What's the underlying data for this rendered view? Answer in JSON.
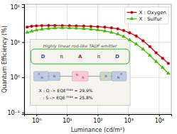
{
  "chart_data": {
    "type": "line",
    "log": true,
    "xlabel": "Luminance (cd/m²)",
    "ylabel": "Quantum Efficiency (%)",
    "x": [
      0.5,
      0.7,
      1.0,
      1.5,
      2.5,
      4.0,
      7.0,
      12,
      20,
      35,
      60,
      100,
      170,
      280,
      450,
      700,
      1100,
      1800,
      3000,
      5000,
      8000,
      13000,
      20000
    ],
    "series": [
      {
        "name": "X : Oxygen",
        "color": "#cc0000",
        "marker": "circle",
        "values": [
          27.0,
          28.5,
          29.2,
          29.7,
          29.9,
          29.8,
          29.6,
          29.4,
          29.1,
          28.7,
          28.2,
          27.6,
          26.8,
          25.6,
          24.0,
          21.5,
          18.5,
          15.0,
          11.0,
          7.5,
          5.0,
          3.5,
          2.5
        ]
      },
      {
        "name": "X : Sulfur",
        "color": "#44bb00",
        "marker": "triangle",
        "values": [
          19.0,
          20.5,
          22.0,
          23.5,
          24.5,
          25.4,
          25.8,
          25.5,
          25.0,
          24.3,
          23.4,
          22.3,
          20.8,
          19.0,
          17.0,
          14.5,
          11.5,
          8.8,
          6.3,
          4.2,
          2.8,
          1.9,
          1.3
        ]
      }
    ],
    "xlim": [
      0.4,
      25000
    ],
    "ylim": [
      0.09,
      120
    ],
    "xticks": [
      {
        "value": 1,
        "label": "10⁰"
      },
      {
        "value": 10,
        "label": "10¹"
      },
      {
        "value": 100,
        "label": "10²"
      },
      {
        "value": 1000,
        "label": "10³"
      },
      {
        "value": 10000,
        "label": "10⁴"
      }
    ],
    "yticks": [
      {
        "value": 0.1,
        "label": "10⁻¹"
      },
      {
        "value": 1,
        "label": "10⁰"
      },
      {
        "value": 10,
        "label": "10¹"
      },
      {
        "value": 100,
        "label": "10²"
      }
    ],
    "grid": true,
    "legend": "upper right",
    "annotations": [
      "Highly linear rod-like TADF emitter",
      [
        "D",
        "π",
        "A",
        "π",
        "D"
      ],
      [
        [
          "X",
          "N"
        ],
        [
          "N"
        ],
        [
          "N",
          "N"
        ],
        [
          "N"
        ],
        [
          "X",
          "N"
        ]
      ],
      [
        [
          "X : O -> EQE",
          "max",
          "= 29.9%"
        ],
        [
          "   : S -> EQE",
          "max",
          "= 25.8%"
        ]
      ]
    ]
  }
}
